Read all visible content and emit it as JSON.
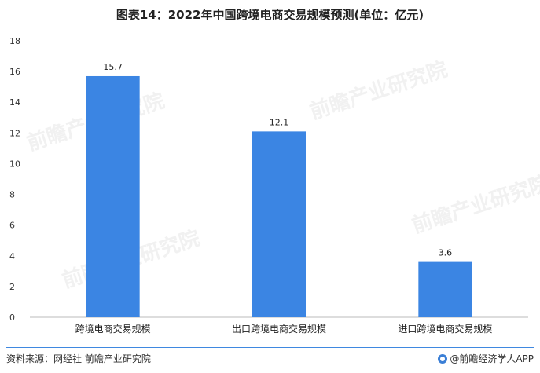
{
  "title": "图表14：2022年中国跨境电商交易规模预测(单位：亿元)",
  "watermark_text": "前瞻产业研究院",
  "footer": {
    "source": "资料来源：网经社 前瞻产业研究院",
    "brand": "@前瞻经济学人APP"
  },
  "colors": {
    "bar": "#3b85e3",
    "axis": "#bbbbbb",
    "accent_line": "#3f88e0"
  },
  "chart_data": {
    "type": "bar",
    "title": "图表14：2022年中国跨境电商交易规模预测(单位：亿元)",
    "categories": [
      "跨境电商交易规模",
      "出口跨境电商交易规模",
      "进口跨境电商交易规模"
    ],
    "values": [
      15.7,
      12.1,
      3.6
    ],
    "value_labels": [
      "15.7",
      "12.1",
      "3.6"
    ],
    "xlabel": "",
    "ylabel": "",
    "ylim": [
      0,
      18
    ],
    "yticks": [
      0,
      2,
      4,
      6,
      8,
      10,
      12,
      14,
      16,
      18
    ],
    "grid": false,
    "legend": "none"
  }
}
